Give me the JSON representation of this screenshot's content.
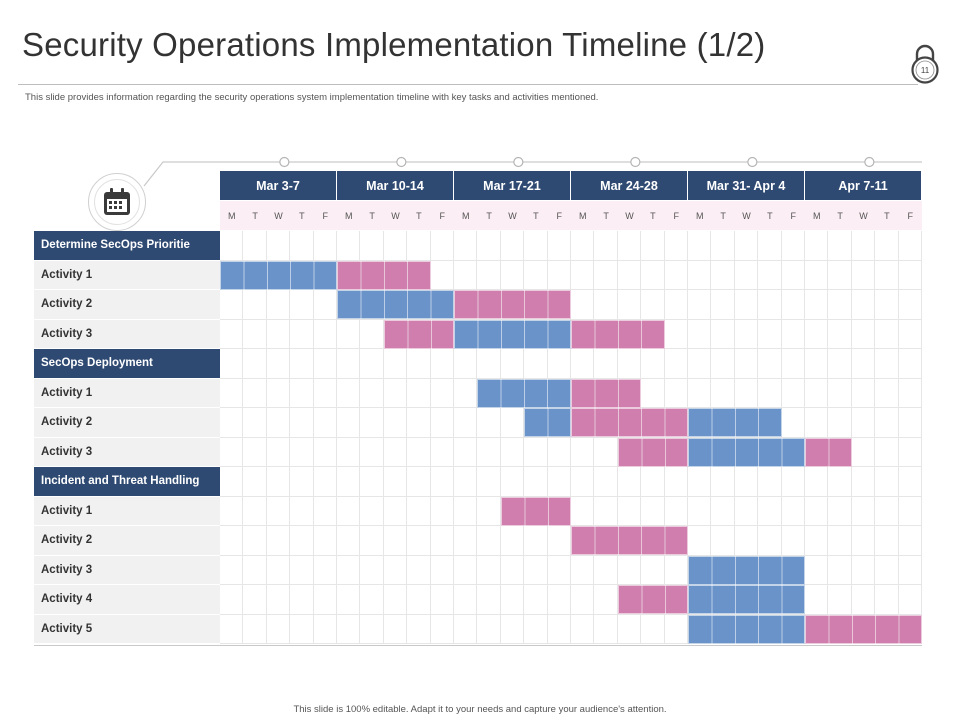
{
  "title": "Security Operations Implementation Timeline (1/2)",
  "page_number": "11",
  "subtitle": "This slide provides information regarding the security operations system implementation timeline  with key tasks and activities mentioned.",
  "footer": "This slide is 100% editable.  Adapt it to your needs and capture your audience's attention.",
  "colors": {
    "header": "#2f4a72",
    "blue": "#6a93c9",
    "pink": "#cf7ead"
  },
  "icons": {
    "header_icon": "padlock-icon",
    "calendar": "calendar-icon"
  },
  "weeks": [
    "Mar 3-7",
    "Mar 10-14",
    "Mar 17-21",
    "Mar 24-28",
    "Mar 31- Apr 4",
    "Apr 7-11"
  ],
  "days": [
    "M",
    "T",
    "W",
    "T",
    "F"
  ],
  "rows": [
    {
      "label": "Determine SecOps Prioritie",
      "type": "section",
      "bars": []
    },
    {
      "label": "Activity  1",
      "type": "activity",
      "bars": [
        {
          "start": 0,
          "length": 5,
          "color": "blue"
        },
        {
          "start": 5,
          "length": 4,
          "color": "pink"
        }
      ]
    },
    {
      "label": "Activity  2",
      "type": "activity",
      "bars": [
        {
          "start": 5,
          "length": 5,
          "color": "blue"
        },
        {
          "start": 10,
          "length": 5,
          "color": "pink"
        }
      ]
    },
    {
      "label": "Activity  3",
      "type": "activity",
      "bars": [
        {
          "start": 7,
          "length": 3,
          "color": "pink"
        },
        {
          "start": 10,
          "length": 5,
          "color": "blue"
        },
        {
          "start": 15,
          "length": 4,
          "color": "pink"
        }
      ]
    },
    {
      "label": "SecOps Deployment",
      "type": "section",
      "bars": []
    },
    {
      "label": "Activity  1",
      "type": "activity",
      "bars": [
        {
          "start": 11,
          "length": 4,
          "color": "blue"
        },
        {
          "start": 15,
          "length": 3,
          "color": "pink"
        }
      ]
    },
    {
      "label": "Activity  2",
      "type": "activity",
      "bars": [
        {
          "start": 13,
          "length": 2,
          "color": "blue"
        },
        {
          "start": 15,
          "length": 5,
          "color": "pink"
        },
        {
          "start": 20,
          "length": 4,
          "color": "blue"
        }
      ]
    },
    {
      "label": "Activity  3",
      "type": "activity",
      "bars": [
        {
          "start": 17,
          "length": 3,
          "color": "pink"
        },
        {
          "start": 20,
          "length": 5,
          "color": "blue"
        },
        {
          "start": 25,
          "length": 2,
          "color": "pink"
        }
      ]
    },
    {
      "label": "Incident and Threat Handling",
      "type": "section",
      "bars": []
    },
    {
      "label": "Activity  1",
      "type": "activity",
      "bars": [
        {
          "start": 12,
          "length": 3,
          "color": "pink"
        }
      ]
    },
    {
      "label": "Activity  2",
      "type": "activity",
      "bars": [
        {
          "start": 15,
          "length": 5,
          "color": "pink"
        }
      ]
    },
    {
      "label": "Activity  3",
      "type": "activity",
      "bars": [
        {
          "start": 20,
          "length": 5,
          "color": "blue"
        }
      ]
    },
    {
      "label": "Activity  4",
      "type": "activity",
      "bars": [
        {
          "start": 17,
          "length": 3,
          "color": "pink"
        },
        {
          "start": 20,
          "length": 5,
          "color": "blue"
        }
      ]
    },
    {
      "label": "Activity  5",
      "type": "activity",
      "bars": [
        {
          "start": 20,
          "length": 5,
          "color": "blue"
        },
        {
          "start": 25,
          "length": 5,
          "color": "pink"
        }
      ]
    }
  ]
}
